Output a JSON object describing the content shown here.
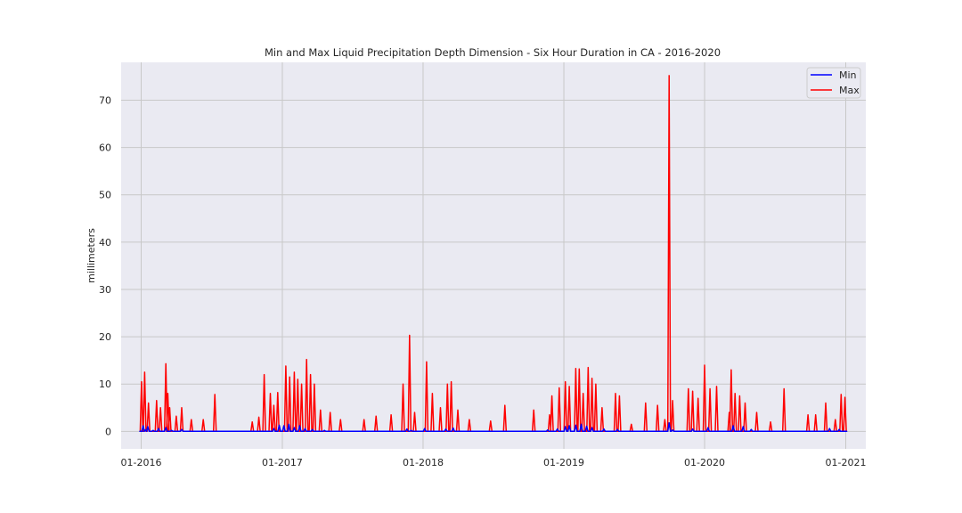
{
  "chart_data": {
    "type": "line",
    "title": "Min and Max Liquid Precipitation Depth Dimension - Six Hour Duration in CA - 2016-2020",
    "xlabel": "",
    "ylabel": "millimeters",
    "x_range": [
      "2016-01-01",
      "2021-01-01"
    ],
    "ylim": [
      -3.7,
      78
    ],
    "x_ticks": [
      "01-2016",
      "01-2017",
      "01-2018",
      "01-2019",
      "01-2020",
      "01-2021"
    ],
    "y_ticks": [
      0,
      10,
      20,
      30,
      40,
      50,
      60,
      70
    ],
    "grid": true,
    "legend_position": "top-right",
    "colors": {
      "Min": "#0000ff",
      "Max": "#ff0000",
      "background": "#eaeaf2",
      "grid": "#c8c8c8"
    },
    "series": [
      {
        "name": "Min",
        "color": "#0000ff",
        "points": [
          [
            "2016-01-01",
            0
          ],
          [
            "2016-01-06",
            1.2
          ],
          [
            "2016-01-12",
            0.3
          ],
          [
            "2016-01-18",
            1.0
          ],
          [
            "2016-02-01",
            0.2
          ],
          [
            "2016-02-15",
            0.6
          ],
          [
            "2016-03-05",
            0.8
          ],
          [
            "2016-03-20",
            0.2
          ],
          [
            "2016-04-15",
            0.4
          ],
          [
            "2016-05-15",
            0
          ],
          [
            "2016-11-15",
            0
          ],
          [
            "2016-12-10",
            0.6
          ],
          [
            "2016-12-24",
            1.3
          ],
          [
            "2017-01-05",
            1.2
          ],
          [
            "2017-01-18",
            1.5
          ],
          [
            "2017-02-01",
            0.8
          ],
          [
            "2017-02-15",
            1.2
          ],
          [
            "2017-03-01",
            0.6
          ],
          [
            "2017-03-20",
            0.4
          ],
          [
            "2017-04-20",
            0.2
          ],
          [
            "2017-06-01",
            0
          ],
          [
            "2017-11-20",
            0.5
          ],
          [
            "2017-12-01",
            0.2
          ],
          [
            "2018-01-05",
            0.6
          ],
          [
            "2018-03-01",
            0.5
          ],
          [
            "2018-03-20",
            0.7
          ],
          [
            "2018-05-01",
            0
          ],
          [
            "2018-11-20",
            0.3
          ],
          [
            "2018-12-15",
            0.5
          ],
          [
            "2019-01-05",
            1.0
          ],
          [
            "2019-01-15",
            1.2
          ],
          [
            "2019-02-01",
            1.3
          ],
          [
            "2019-02-15",
            1.5
          ],
          [
            "2019-03-01",
            1.1
          ],
          [
            "2019-03-15",
            0.8
          ],
          [
            "2019-04-15",
            0.5
          ],
          [
            "2019-05-20",
            0.4
          ],
          [
            "2019-06-15",
            0
          ],
          [
            "2019-10-01",
            1.8
          ],
          [
            "2019-10-10",
            0.3
          ],
          [
            "2019-12-01",
            0.5
          ],
          [
            "2020-01-10",
            0.8
          ],
          [
            "2020-03-15",
            1.2
          ],
          [
            "2020-04-10",
            1.0
          ],
          [
            "2020-05-01",
            0.4
          ],
          [
            "2020-06-01",
            0
          ],
          [
            "2020-11-20",
            0.6
          ],
          [
            "2020-12-15",
            0.4
          ],
          [
            "2020-12-31",
            0
          ]
        ]
      },
      {
        "name": "Max",
        "color": "#ff0000",
        "points": [
          [
            "2016-01-02",
            10.5
          ],
          [
            "2016-01-10",
            12.5
          ],
          [
            "2016-01-20",
            6.0
          ],
          [
            "2016-02-10",
            6.5
          ],
          [
            "2016-02-20",
            5.0
          ],
          [
            "2016-03-05",
            14.3
          ],
          [
            "2016-03-10",
            8.0
          ],
          [
            "2016-03-15",
            5.0
          ],
          [
            "2016-04-01",
            3.2
          ],
          [
            "2016-04-15",
            5.0
          ],
          [
            "2016-05-10",
            2.5
          ],
          [
            "2016-06-10",
            2.5
          ],
          [
            "2016-07-10",
            7.8
          ],
          [
            "2016-10-15",
            2.0
          ],
          [
            "2016-11-01",
            3.0
          ],
          [
            "2016-11-15",
            12.0
          ],
          [
            "2016-12-01",
            8.0
          ],
          [
            "2016-12-10",
            5.5
          ],
          [
            "2016-12-20",
            8.2
          ],
          [
            "2017-01-10",
            13.8
          ],
          [
            "2017-01-20",
            11.5
          ],
          [
            "2017-02-01",
            12.5
          ],
          [
            "2017-02-10",
            11.0
          ],
          [
            "2017-02-20",
            10.0
          ],
          [
            "2017-03-05",
            15.2
          ],
          [
            "2017-03-15",
            12.0
          ],
          [
            "2017-03-25",
            10.0
          ],
          [
            "2017-04-10",
            4.5
          ],
          [
            "2017-05-05",
            4.0
          ],
          [
            "2017-06-01",
            2.5
          ],
          [
            "2017-08-01",
            2.5
          ],
          [
            "2017-09-01",
            3.2
          ],
          [
            "2017-10-10",
            3.5
          ],
          [
            "2017-11-10",
            10.0
          ],
          [
            "2017-11-27",
            20.3
          ],
          [
            "2017-12-10",
            4.0
          ],
          [
            "2018-01-10",
            14.7
          ],
          [
            "2018-01-25",
            8.0
          ],
          [
            "2018-02-15",
            5.0
          ],
          [
            "2018-03-05",
            10.0
          ],
          [
            "2018-03-15",
            10.5
          ],
          [
            "2018-04-01",
            4.5
          ],
          [
            "2018-05-01",
            2.5
          ],
          [
            "2018-06-25",
            2.2
          ],
          [
            "2018-08-01",
            5.5
          ],
          [
            "2018-10-15",
            4.5
          ],
          [
            "2018-11-25",
            3.5
          ],
          [
            "2018-12-01",
            7.5
          ],
          [
            "2018-12-20",
            9.2
          ],
          [
            "2019-01-05",
            10.5
          ],
          [
            "2019-01-15",
            9.5
          ],
          [
            "2019-02-01",
            13.3
          ],
          [
            "2019-02-10",
            13.2
          ],
          [
            "2019-02-20",
            8.0
          ],
          [
            "2019-03-05",
            13.5
          ],
          [
            "2019-03-15",
            11.2
          ],
          [
            "2019-03-25",
            10.0
          ],
          [
            "2019-04-10",
            5.0
          ],
          [
            "2019-05-15",
            8.0
          ],
          [
            "2019-05-25",
            7.5
          ],
          [
            "2019-06-25",
            1.5
          ],
          [
            "2019-08-01",
            6.0
          ],
          [
            "2019-09-01",
            5.5
          ],
          [
            "2019-09-20",
            2.5
          ],
          [
            "2019-10-01",
            75.2
          ],
          [
            "2019-10-10",
            6.5
          ],
          [
            "2019-11-20",
            9.0
          ],
          [
            "2019-12-01",
            8.5
          ],
          [
            "2019-12-15",
            7.0
          ],
          [
            "2020-01-01",
            14.0
          ],
          [
            "2020-01-15",
            9.0
          ],
          [
            "2020-02-01",
            9.5
          ],
          [
            "2020-03-05",
            4.0
          ],
          [
            "2020-03-10",
            13.0
          ],
          [
            "2020-03-20",
            8.0
          ],
          [
            "2020-04-01",
            7.5
          ],
          [
            "2020-04-15",
            6.0
          ],
          [
            "2020-05-15",
            4.0
          ],
          [
            "2020-06-20",
            2.0
          ],
          [
            "2020-07-25",
            9.0
          ],
          [
            "2020-09-25",
            3.5
          ],
          [
            "2020-10-15",
            3.5
          ],
          [
            "2020-11-10",
            6.0
          ],
          [
            "2020-12-05",
            2.5
          ],
          [
            "2020-12-20",
            7.8
          ],
          [
            "2020-12-30",
            7.2
          ]
        ]
      }
    ]
  }
}
